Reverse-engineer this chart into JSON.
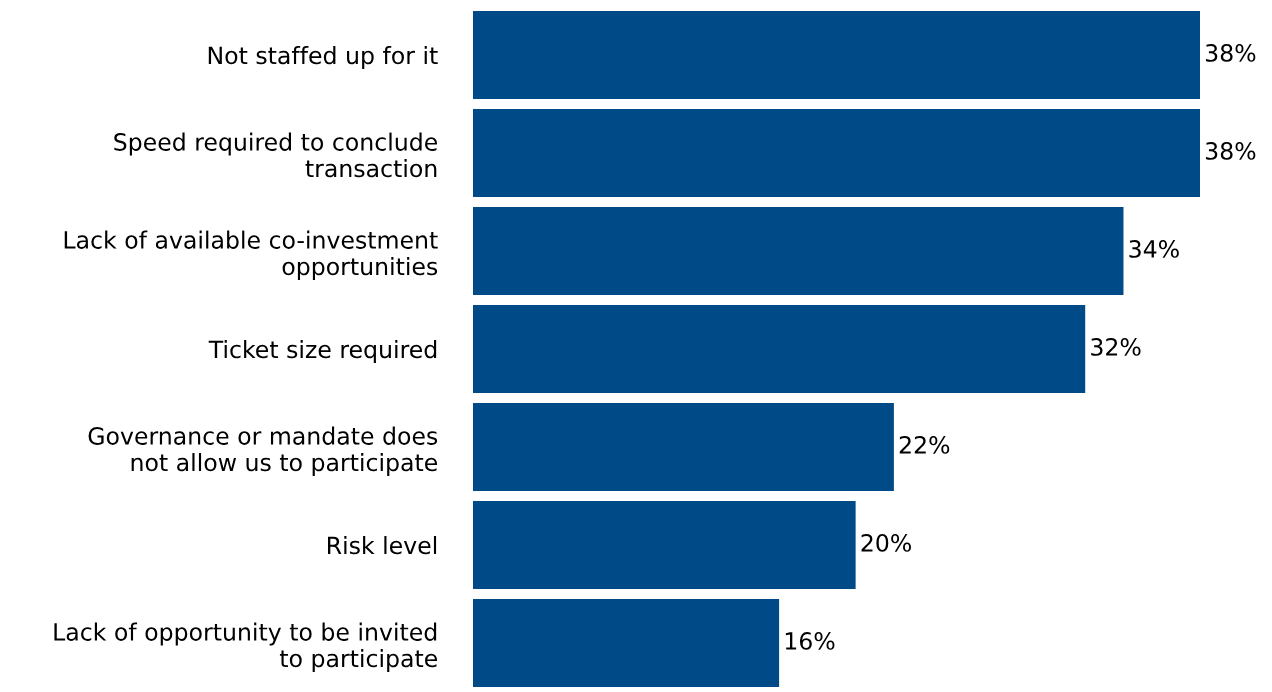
{
  "chart_data": {
    "type": "bar",
    "orientation": "horizontal",
    "categories": [
      "Not staffed up for it",
      "Speed required to conclude\ntransaction",
      "Lack of available co-investment\nopportunities",
      "Ticket size required",
      "Governance or mandate does\nnot allow us to participate",
      "Risk level",
      "Lack of opportunity to be invited\nto participate"
    ],
    "values": [
      38,
      38,
      34,
      32,
      22,
      20,
      16
    ],
    "value_labels": [
      "38%",
      "38%",
      "34%",
      "32%",
      "22%",
      "20%",
      "16%"
    ],
    "color": "#004b87",
    "tick_labels": "y"
  }
}
